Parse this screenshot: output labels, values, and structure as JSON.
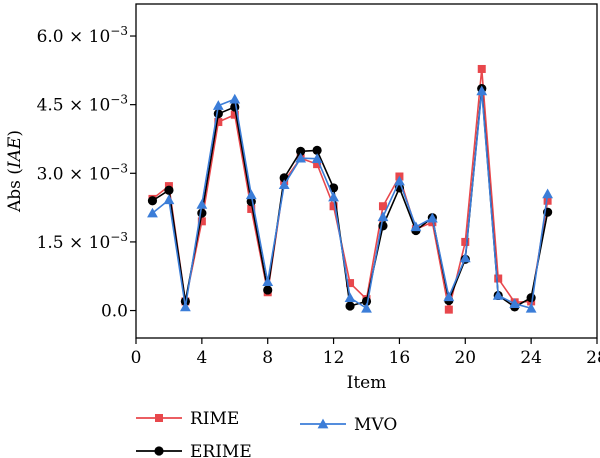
{
  "chart_data": {
    "type": "line",
    "title": "",
    "xlabel": "Item",
    "ylabel": "Abs (IAE)",
    "ylabel_parts": {
      "prefix": "Abs (",
      "italic": "IAE",
      "suffix": ")"
    },
    "xlim": [
      0,
      28
    ],
    "ylim": [
      -0.0006,
      0.0067
    ],
    "x_ticks": [
      0,
      4,
      8,
      12,
      16,
      20,
      24,
      28
    ],
    "x_tick_labels": [
      "0",
      "4",
      "8",
      "12",
      "16",
      "20",
      "24",
      "28"
    ],
    "y_ticks": [
      0,
      0.0015,
      0.003,
      0.0045,
      0.006
    ],
    "y_tick_labels": [
      {
        "mantissa": "0.0",
        "exponent": ""
      },
      {
        "mantissa": "1.5",
        "exponent": "−3"
      },
      {
        "mantissa": "3.0",
        "exponent": "−3"
      },
      {
        "mantissa": "4.5",
        "exponent": "−3"
      },
      {
        "mantissa": "6.0",
        "exponent": "−3"
      }
    ],
    "grid": false,
    "legend_position": "bottom",
    "x": [
      1,
      2,
      3,
      4,
      5,
      6,
      7,
      8,
      9,
      10,
      11,
      12,
      13,
      14,
      15,
      16,
      17,
      18,
      19,
      20,
      21,
      22,
      23,
      24,
      25
    ],
    "series": [
      {
        "name": "RIME",
        "color": "#e8474c",
        "marker": "square",
        "values": [
          0.00244,
          0.00272,
          0.0002,
          0.00195,
          0.00412,
          0.00428,
          0.00222,
          0.0004,
          0.00283,
          0.00333,
          0.0032,
          0.00228,
          0.0006,
          0.00025,
          0.00228,
          0.00293,
          0.00178,
          0.00193,
          2e-05,
          0.0015,
          0.00528,
          0.0007,
          0.00018,
          0.0002,
          0.0024
        ]
      },
      {
        "name": "ERIME",
        "color": "#000000",
        "marker": "circle",
        "values": [
          0.0024,
          0.00263,
          0.0002,
          0.00213,
          0.0043,
          0.00445,
          0.00238,
          0.00045,
          0.0029,
          0.00348,
          0.0035,
          0.00268,
          0.0001,
          0.0002,
          0.00185,
          0.00268,
          0.00175,
          0.00203,
          0.00022,
          0.00112,
          0.00485,
          0.00033,
          8e-05,
          0.00028,
          0.00215
        ]
      },
      {
        "name": "MVO",
        "color": "#3b7dd8",
        "marker": "triangle",
        "values": [
          0.00213,
          0.00242,
          8e-05,
          0.00232,
          0.00448,
          0.00462,
          0.00253,
          0.00063,
          0.00275,
          0.00333,
          0.00332,
          0.00248,
          0.00028,
          5e-05,
          0.00205,
          0.00283,
          0.00183,
          0.00202,
          0.0003,
          0.00115,
          0.0048,
          0.00033,
          0.00015,
          5e-05,
          0.00255
        ]
      }
    ]
  }
}
